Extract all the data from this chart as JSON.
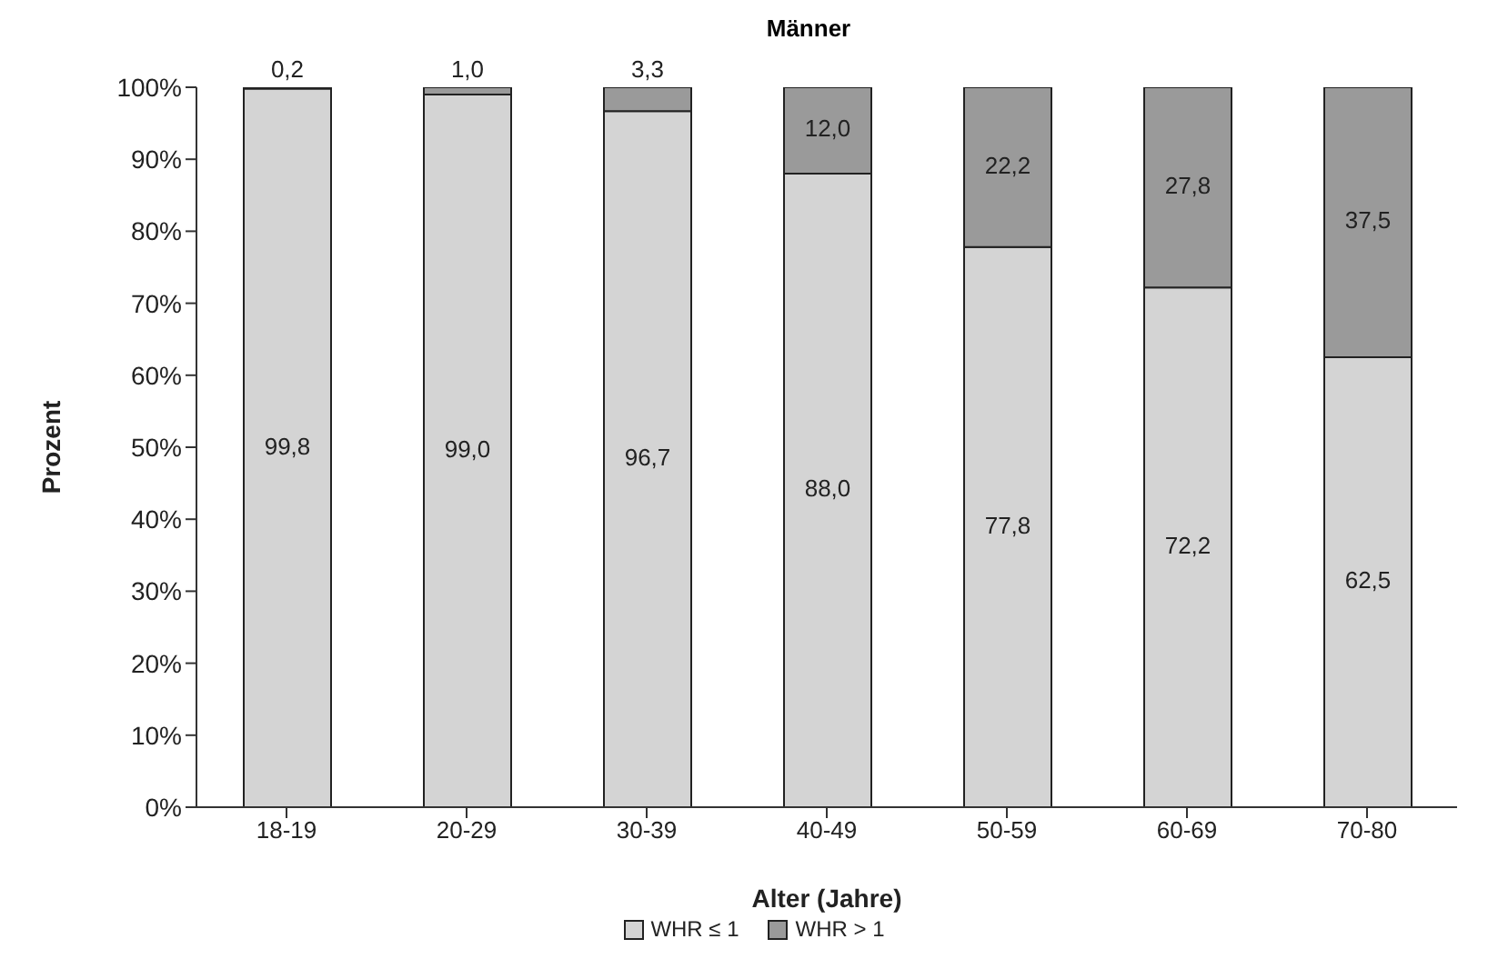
{
  "chart_data": {
    "type": "bar",
    "title": "Männer",
    "xlabel": "Alter (Jahre)",
    "ylabel": "Prozent",
    "stacked": true,
    "categories": [
      "18-19",
      "20-29",
      "30-39",
      "40-49",
      "50-59",
      "60-69",
      "70-80"
    ],
    "series": [
      {
        "name": "WHR ≤ 1",
        "color": "#d4d4d4",
        "values": [
          99.8,
          99.0,
          96.7,
          88.0,
          77.8,
          72.2,
          62.5
        ],
        "value_labels": [
          "99,8",
          "99,0",
          "96,7",
          "88,0",
          "77,8",
          "72,2",
          "62,5"
        ]
      },
      {
        "name": "WHR > 1",
        "color": "#9a9a9a",
        "values": [
          0.2,
          1.0,
          3.3,
          12.0,
          22.2,
          27.8,
          37.5
        ],
        "value_labels": [
          "0,2",
          "1,0",
          "3,3",
          "12,0",
          "22,2",
          "27,8",
          "37,5"
        ]
      }
    ],
    "ylim": [
      0,
      100
    ],
    "yticks": [
      {
        "value": 0,
        "label": "0%"
      },
      {
        "value": 10,
        "label": "10%"
      },
      {
        "value": 20,
        "label": "20%"
      },
      {
        "value": 30,
        "label": "30%"
      },
      {
        "value": 40,
        "label": "40%"
      },
      {
        "value": 50,
        "label": "50%"
      },
      {
        "value": 60,
        "label": "60%"
      },
      {
        "value": 70,
        "label": "70%"
      },
      {
        "value": 80,
        "label": "80%"
      },
      {
        "value": 90,
        "label": "90%"
      },
      {
        "value": 100,
        "label": "100%"
      }
    ],
    "grid": false,
    "legend": "bottom"
  }
}
